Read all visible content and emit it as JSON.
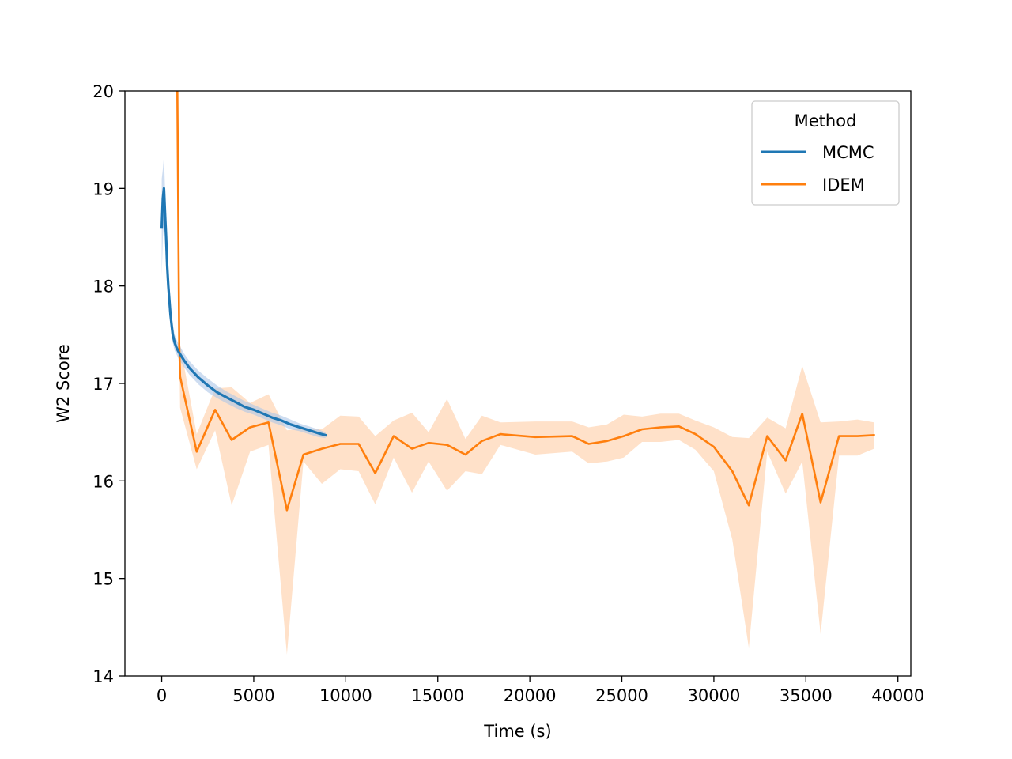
{
  "chart_data": {
    "type": "line",
    "title": "",
    "xlabel": "Time (s)",
    "ylabel": "W2 Score",
    "xlim": [
      -2000,
      40700
    ],
    "ylim": [
      14,
      20
    ],
    "xticks": [
      0,
      5000,
      10000,
      15000,
      20000,
      25000,
      30000,
      35000,
      40000
    ],
    "yticks": [
      14,
      15,
      16,
      17,
      18,
      19,
      20
    ],
    "grid": false,
    "legend": {
      "title": "Method",
      "placement": "upper right"
    },
    "series": [
      {
        "name": "MCMC",
        "color": "#1f77b4",
        "band_color": "#aec7e8",
        "x": [
          0,
          60,
          120,
          180,
          240,
          300,
          360,
          420,
          480,
          540,
          600,
          700,
          800,
          900,
          1000,
          1200,
          1500,
          2000,
          2500,
          3000,
          3500,
          4000,
          4500,
          5000,
          5500,
          6000,
          6500,
          7000,
          7500,
          8000,
          8500,
          8900
        ],
        "y": [
          18.6,
          18.9,
          19.0,
          18.75,
          18.5,
          18.2,
          18.0,
          17.85,
          17.7,
          17.6,
          17.5,
          17.42,
          17.37,
          17.33,
          17.3,
          17.24,
          17.16,
          17.06,
          16.98,
          16.91,
          16.86,
          16.81,
          16.76,
          16.73,
          16.69,
          16.65,
          16.62,
          16.58,
          16.55,
          16.52,
          16.49,
          16.47
        ],
        "lower": [
          18.1,
          18.5,
          18.65,
          18.5,
          18.3,
          18.05,
          17.85,
          17.7,
          17.58,
          17.5,
          17.42,
          17.34,
          17.3,
          17.26,
          17.23,
          17.17,
          17.09,
          16.99,
          16.91,
          16.85,
          16.8,
          16.75,
          16.71,
          16.68,
          16.64,
          16.6,
          16.57,
          16.53,
          16.51,
          16.48,
          16.45,
          16.44
        ],
        "upper": [
          19.1,
          19.2,
          19.33,
          19.0,
          18.7,
          18.35,
          18.15,
          18.0,
          17.82,
          17.72,
          17.6,
          17.5,
          17.45,
          17.41,
          17.38,
          17.31,
          17.23,
          17.13,
          17.05,
          16.98,
          16.92,
          16.87,
          16.82,
          16.78,
          16.74,
          16.7,
          16.67,
          16.63,
          16.59,
          16.56,
          16.53,
          16.5
        ]
      },
      {
        "name": "IDEM",
        "color": "#ff7f0e",
        "band_color": "#ffdcc0",
        "x": [
          850,
          950,
          1000,
          1900,
          2900,
          3800,
          4800,
          5800,
          6800,
          7700,
          8700,
          9700,
          10700,
          11600,
          12600,
          13600,
          14500,
          15500,
          16500,
          17400,
          18400,
          20300,
          22300,
          23200,
          24200,
          25100,
          26100,
          27100,
          28100,
          29000,
          30000,
          31000,
          31900,
          32900,
          33900,
          34800,
          35800,
          36800,
          37800,
          38700
        ],
        "y": [
          20.0,
          17.4,
          17.07,
          16.3,
          16.73,
          16.42,
          16.55,
          16.6,
          15.7,
          16.27,
          16.33,
          16.38,
          16.38,
          16.08,
          16.46,
          16.33,
          16.39,
          16.37,
          16.27,
          16.41,
          16.48,
          16.45,
          16.46,
          16.38,
          16.41,
          16.46,
          16.53,
          16.55,
          16.56,
          16.48,
          16.35,
          16.1,
          15.75,
          16.46,
          16.21,
          16.69,
          15.78,
          16.46,
          16.46,
          16.47
        ],
        "lower": [
          20.0,
          17.4,
          16.75,
          16.12,
          16.52,
          15.75,
          16.3,
          16.37,
          14.22,
          16.2,
          15.97,
          16.12,
          16.1,
          15.76,
          16.24,
          15.88,
          16.2,
          15.9,
          16.1,
          16.07,
          16.37,
          16.27,
          16.3,
          16.18,
          16.2,
          16.24,
          16.4,
          16.4,
          16.42,
          16.32,
          16.1,
          15.4,
          14.29,
          16.3,
          15.87,
          16.2,
          14.43,
          16.26,
          16.26,
          16.33
        ],
        "upper": [
          20.0,
          17.4,
          17.4,
          16.48,
          16.95,
          16.96,
          16.8,
          16.89,
          16.52,
          16.54,
          16.53,
          16.67,
          16.66,
          16.46,
          16.62,
          16.7,
          16.5,
          16.84,
          16.43,
          16.67,
          16.6,
          16.61,
          16.61,
          16.55,
          16.58,
          16.68,
          16.66,
          16.69,
          16.69,
          16.62,
          16.55,
          16.45,
          16.44,
          16.65,
          16.54,
          17.18,
          16.6,
          16.61,
          16.63,
          16.6
        ]
      }
    ]
  }
}
